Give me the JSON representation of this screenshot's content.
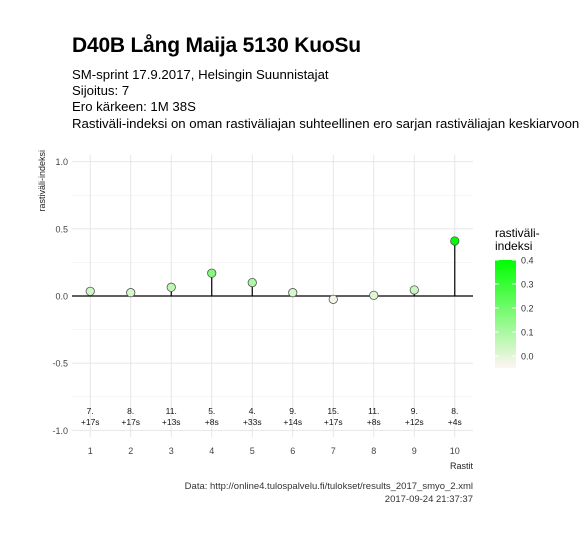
{
  "header": {
    "title": "D40B Lång Maija 5130 KuoSu",
    "subtitle_lines": [
      "SM-sprint 17.9.2017, Helsingin Suunnistajat",
      "Sijoitus: 7",
      "Ero kärkeen: 1M 38S",
      "Rastiväli-indeksi on oman rastiväliajan suhteellinen ero sarjan rastiväliajan keskiarvoon"
    ]
  },
  "caption": {
    "source": "Data: http://online4.tulospalvelu.fi/tulokset/results_2017_smyo_2.xml",
    "timestamp": "2017-09-24 21:37:37"
  },
  "colors": {
    "low": "#fff5f3",
    "high": "#00ff00",
    "grid": "#e3e3e3",
    "point_stroke": "#555555"
  },
  "chart_data": {
    "type": "scatter",
    "title": "D40B Lång Maija 5130 KuoSu",
    "xlabel": "Rastit",
    "ylabel": "rastiväli-indeksi",
    "ylim": [
      -1.0,
      1.0
    ],
    "xlim": [
      1,
      10
    ],
    "y_ticks": [
      "-1.0",
      "-0.5",
      "0.0",
      "0.5",
      "1.0"
    ],
    "x_ticks": [
      "1",
      "2",
      "3",
      "4",
      "5",
      "6",
      "7",
      "8",
      "9",
      "10"
    ],
    "grid": true,
    "series": [
      {
        "x": [
          1,
          2,
          3,
          4,
          5,
          6,
          7,
          8,
          9,
          10
        ],
        "y": [
          0.035,
          0.025,
          0.065,
          0.17,
          0.1,
          0.025,
          -0.025,
          0.005,
          0.045,
          0.41
        ]
      }
    ],
    "point_labels": [
      [
        "7.",
        "+17s"
      ],
      [
        "8.",
        "+17s"
      ],
      [
        "11.",
        "+13s"
      ],
      [
        "5.",
        "+8s"
      ],
      [
        "4.",
        "+33s"
      ],
      [
        "9.",
        "+14s"
      ],
      [
        "15.",
        "+17s"
      ],
      [
        "11.",
        "+8s"
      ],
      [
        "9.",
        "+12s"
      ],
      [
        "8.",
        "+4s"
      ]
    ],
    "legend": {
      "title_lines": [
        "rastiväli-",
        "indeksi"
      ],
      "range": [
        -0.05,
        0.4
      ],
      "ticks": [
        "0.0",
        "0.1",
        "0.2",
        "0.3",
        "0.4"
      ],
      "placement": "right"
    }
  }
}
